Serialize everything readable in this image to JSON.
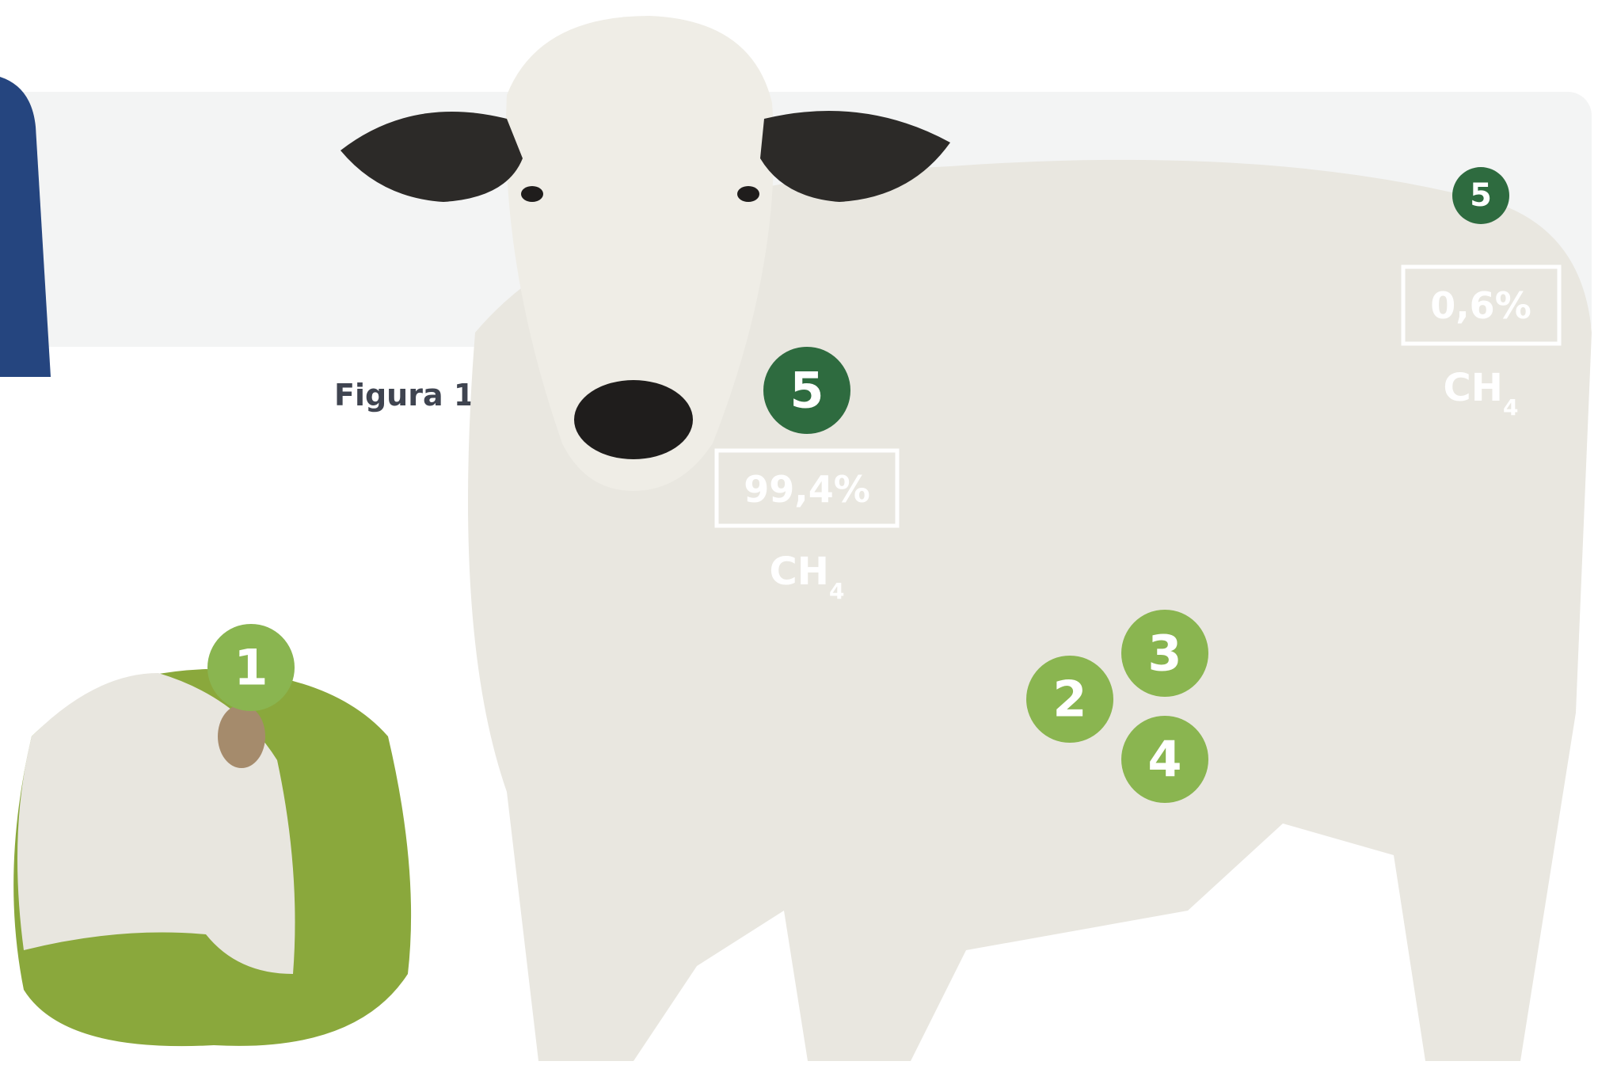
{
  "figure_label": "Figura 1",
  "markers": [
    "1",
    "2",
    "3",
    "4",
    "5",
    "5"
  ],
  "emissions": [
    {
      "percent": "99,4%",
      "gas": {
        "text": "CH",
        "subscript": "4"
      }
    },
    {
      "percent": "0,6%",
      "gas": {
        "text": "CH",
        "subscript": "4"
      }
    }
  ]
}
